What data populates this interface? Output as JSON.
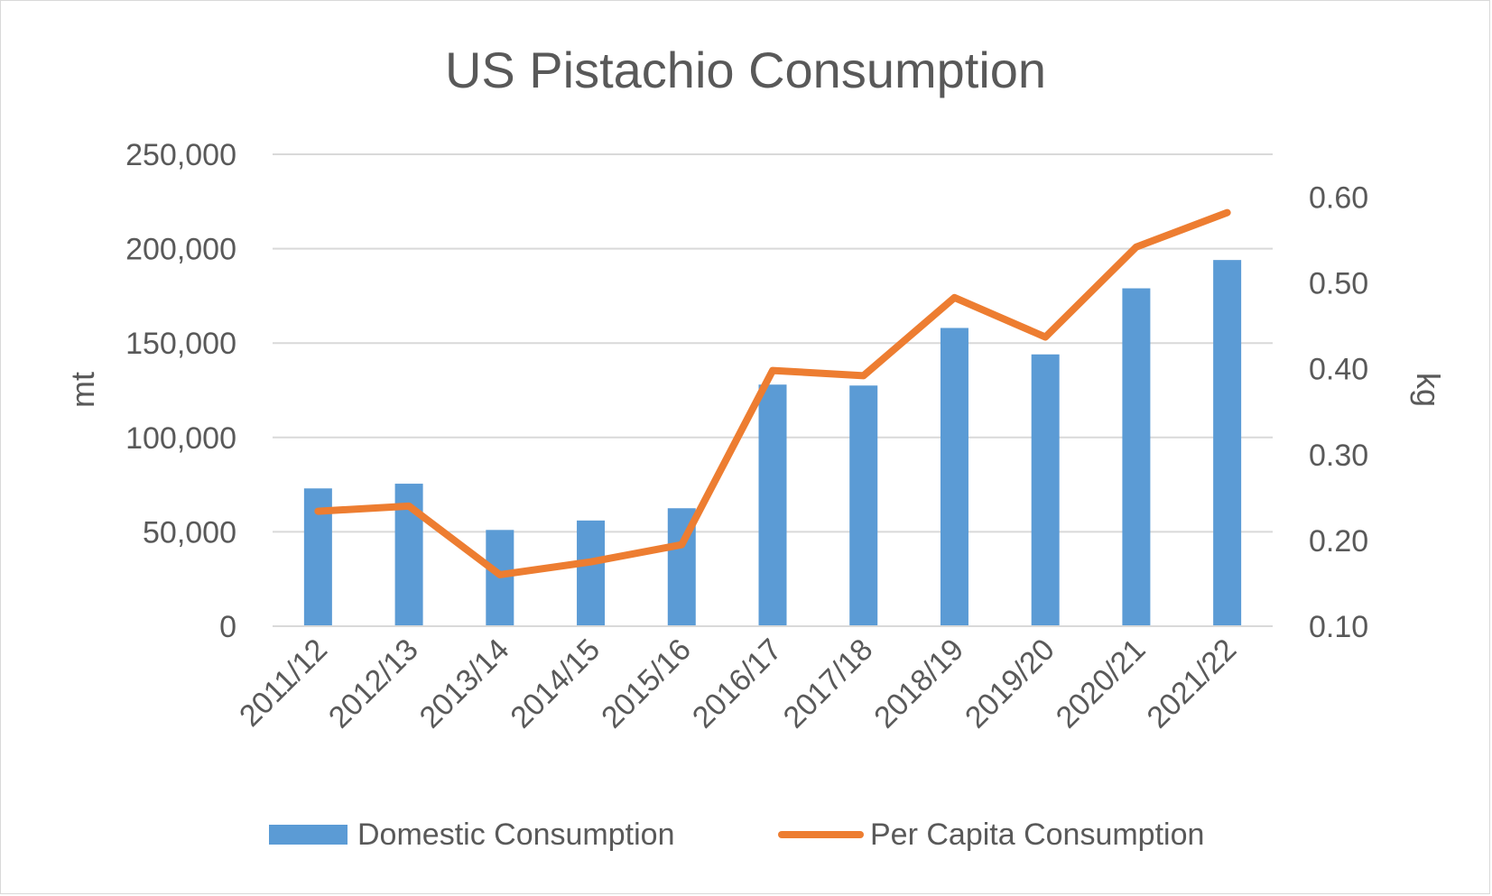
{
  "chart_data": {
    "type": "bar+line",
    "title": "US Pistachio Consumption",
    "categories": [
      "2011/12",
      "2012/13",
      "2013/14",
      "2014/15",
      "2015/16",
      "2016/17",
      "2017/18",
      "2018/19",
      "2019/20",
      "2020/21",
      "2021/22"
    ],
    "series": [
      {
        "name": "Domestic Consumption",
        "type": "bar",
        "axis": "left",
        "color": "#5b9bd5",
        "values": [
          73000,
          75500,
          51000,
          56000,
          62500,
          128000,
          127500,
          158000,
          144000,
          179000,
          194000
        ]
      },
      {
        "name": "Per Capita Consumption",
        "type": "line",
        "axis": "right",
        "color": "#ed7d31",
        "values": [
          0.234,
          0.24,
          0.16,
          0.175,
          0.195,
          0.398,
          0.392,
          0.483,
          0.437,
          0.542,
          0.582
        ]
      }
    ],
    "y_left": {
      "label": "mt",
      "min": 0,
      "max": 250000,
      "ticks": [
        "0",
        "50,000",
        "100,000",
        "150,000",
        "200,000",
        "250,000"
      ]
    },
    "y_right": {
      "label": "kg",
      "min": 0.1,
      "max": 0.65,
      "ticks": [
        "0.10",
        "0.20",
        "0.30",
        "0.40",
        "0.50",
        "0.60"
      ]
    },
    "grid": true,
    "legend": "bottom"
  }
}
